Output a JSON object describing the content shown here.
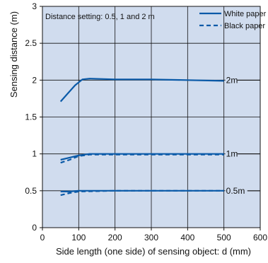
{
  "chart_data": {
    "type": "line",
    "title": "",
    "annotation": "Distance setting: 0.5, 1 and 2 m",
    "xlabel": "Side length (one side) of sensing object: d (mm)",
    "ylabel": "Sensing distance (m)",
    "xlim": [
      0,
      600
    ],
    "ylim": [
      0,
      3
    ],
    "xticks": [
      "0",
      "100",
      "200",
      "300",
      "400",
      "500",
      "600"
    ],
    "yticks": [
      "0",
      "0.5",
      "1",
      "1.5",
      "2",
      "2.5",
      "3"
    ],
    "grid": true,
    "legend_position": "top-right",
    "line_labels": [
      {
        "text": "2m",
        "x": 500,
        "y": 2.0
      },
      {
        "text": "1m",
        "x": 500,
        "y": 1.0
      },
      {
        "text": "0.5m",
        "x": 500,
        "y": 0.5
      }
    ],
    "series": [
      {
        "name": "White paper",
        "style": "solid",
        "group": "2m",
        "points": [
          [
            50,
            1.71
          ],
          [
            70,
            1.82
          ],
          [
            90,
            1.93
          ],
          [
            110,
            2.01
          ],
          [
            130,
            2.02
          ],
          [
            200,
            2.01
          ],
          [
            300,
            2.01
          ],
          [
            400,
            2.0
          ],
          [
            500,
            1.99
          ]
        ]
      },
      {
        "name": "White paper",
        "style": "solid",
        "group": "1m",
        "points": [
          [
            50,
            0.92
          ],
          [
            75,
            0.95
          ],
          [
            100,
            0.98
          ],
          [
            130,
            1.0
          ],
          [
            200,
            1.0
          ],
          [
            300,
            1.0
          ],
          [
            400,
            1.0
          ],
          [
            500,
            1.0
          ]
        ]
      },
      {
        "name": "White paper",
        "style": "solid",
        "group": "0.5m",
        "points": [
          [
            50,
            0.49
          ],
          [
            75,
            0.49
          ],
          [
            100,
            0.5
          ],
          [
            200,
            0.5
          ],
          [
            300,
            0.5
          ],
          [
            400,
            0.5
          ],
          [
            500,
            0.5
          ]
        ]
      },
      {
        "name": "Black paper",
        "style": "dashed",
        "group": "1m",
        "points": [
          [
            50,
            0.88
          ],
          [
            75,
            0.92
          ],
          [
            100,
            0.97
          ],
          [
            130,
            0.99
          ],
          [
            200,
            0.99
          ],
          [
            300,
            0.99
          ],
          [
            400,
            0.99
          ],
          [
            500,
            0.99
          ]
        ]
      },
      {
        "name": "Black paper",
        "style": "dashed",
        "group": "0.5m",
        "points": [
          [
            50,
            0.44
          ],
          [
            75,
            0.47
          ],
          [
            100,
            0.49
          ],
          [
            200,
            0.5
          ],
          [
            300,
            0.5
          ],
          [
            400,
            0.5
          ],
          [
            500,
            0.5
          ]
        ]
      }
    ],
    "colors": {
      "line": "#0a5aa8",
      "background": "#d0dcee",
      "grid": "#111111"
    }
  }
}
